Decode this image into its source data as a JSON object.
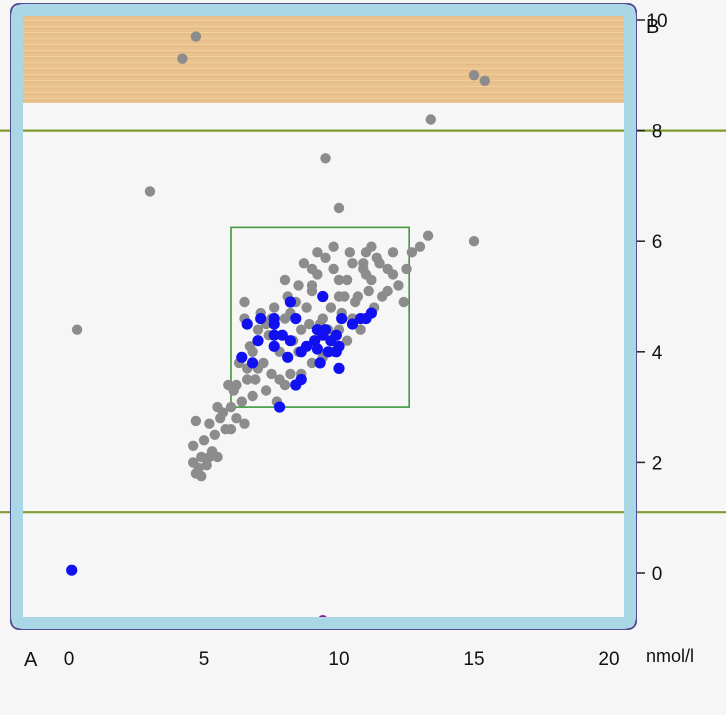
{
  "chart_data": {
    "type": "scatter",
    "corner_label_bottom_left": "A",
    "corner_label_top_right": "B",
    "x_unit_label": "nmol/l",
    "x_ticks": [
      "0",
      "5",
      "10",
      "15",
      "20"
    ],
    "y_ticks": [
      "0",
      "2",
      "4",
      "6",
      "8",
      "10"
    ],
    "xlim": [
      0,
      20
    ],
    "ylim": [
      -0.8,
      10
    ],
    "reference_lines_y": [
      1.1,
      8.0
    ],
    "upper_band_y": [
      8.5,
      10
    ],
    "reference_box": {
      "x": [
        6.0,
        12.6
      ],
      "y": [
        3.0,
        6.25
      ]
    },
    "grid": false,
    "colors": {
      "background": "#f6f6f6",
      "frame": "#a9d7e5",
      "frame_border": "#504c98",
      "band": "#e9c28e",
      "reference_line": "#7e9b2f",
      "reference_box": "#3e9a3e",
      "series_gray": "#8c8c8c",
      "series_blue": "#1010f0",
      "marker_purple": "#8a1f8a"
    },
    "series": [
      {
        "color": "#8c8c8c",
        "points": [
          [
            0.3,
            4.4
          ],
          [
            4.7,
            9.7
          ],
          [
            4.2,
            9.3
          ],
          [
            15.0,
            9.0
          ],
          [
            15.4,
            8.9
          ],
          [
            13.4,
            8.2
          ],
          [
            3.0,
            6.9
          ],
          [
            9.5,
            7.5
          ],
          [
            10.0,
            6.6
          ],
          [
            15.0,
            6.0
          ],
          [
            13.3,
            6.1
          ],
          [
            12.7,
            5.8
          ],
          [
            12.5,
            5.5
          ],
          [
            13.0,
            5.9
          ],
          [
            12.0,
            5.8
          ],
          [
            11.5,
            5.6
          ],
          [
            11.0,
            5.4
          ],
          [
            10.5,
            5.6
          ],
          [
            10.0,
            5.3
          ],
          [
            9.5,
            5.7
          ],
          [
            9.0,
            5.5
          ],
          [
            9.4,
            5.0
          ],
          [
            8.5,
            5.2
          ],
          [
            8.8,
            4.8
          ],
          [
            9.2,
            5.4
          ],
          [
            10.2,
            5.0
          ],
          [
            10.7,
            5.0
          ],
          [
            11.2,
            5.3
          ],
          [
            11.6,
            5.0
          ],
          [
            11.8,
            5.5
          ],
          [
            10.5,
            4.6
          ],
          [
            10.0,
            4.4
          ],
          [
            9.3,
            4.5
          ],
          [
            8.6,
            4.4
          ],
          [
            8.0,
            4.6
          ],
          [
            8.3,
            4.2
          ],
          [
            7.8,
            4.0
          ],
          [
            7.4,
            4.3
          ],
          [
            7.0,
            4.4
          ],
          [
            6.8,
            4.0
          ],
          [
            6.5,
            4.6
          ],
          [
            7.2,
            3.8
          ],
          [
            7.5,
            3.6
          ],
          [
            7.8,
            3.5
          ],
          [
            8.2,
            3.6
          ],
          [
            8.6,
            3.6
          ],
          [
            9.0,
            3.8
          ],
          [
            9.4,
            3.9
          ],
          [
            8.0,
            3.4
          ],
          [
            7.3,
            3.3
          ],
          [
            6.8,
            3.2
          ],
          [
            6.4,
            3.1
          ],
          [
            6.0,
            3.0
          ],
          [
            5.7,
            2.9
          ],
          [
            6.2,
            2.8
          ],
          [
            5.8,
            2.6
          ],
          [
            6.5,
            2.7
          ],
          [
            5.4,
            2.5
          ],
          [
            5.0,
            2.4
          ],
          [
            5.3,
            2.2
          ],
          [
            4.9,
            2.1
          ],
          [
            4.6,
            2.0
          ],
          [
            4.8,
            1.9
          ],
          [
            5.1,
            1.95
          ],
          [
            4.7,
            1.8
          ],
          [
            4.9,
            1.75
          ],
          [
            5.2,
            2.1
          ],
          [
            4.6,
            2.3
          ],
          [
            6.2,
            3.4
          ],
          [
            6.6,
            3.5
          ],
          [
            7.0,
            3.7
          ],
          [
            6.9,
            3.5
          ],
          [
            9.8,
            4.0
          ],
          [
            10.3,
            4.2
          ],
          [
            10.8,
            4.4
          ],
          [
            11.3,
            4.8
          ],
          [
            11.0,
            5.8
          ],
          [
            8.4,
            4.9
          ],
          [
            8.1,
            5.0
          ],
          [
            7.6,
            4.8
          ],
          [
            7.1,
            4.7
          ],
          [
            9.7,
            4.8
          ],
          [
            10.3,
            5.3
          ],
          [
            10.9,
            5.6
          ],
          [
            11.4,
            5.7
          ],
          [
            9.0,
            5.1
          ],
          [
            8.7,
            5.6
          ],
          [
            9.8,
            5.9
          ],
          [
            10.4,
            5.8
          ],
          [
            11.2,
            5.9
          ],
          [
            9.2,
            5.8
          ],
          [
            8.0,
            5.3
          ],
          [
            7.3,
            4.5
          ],
          [
            6.7,
            4.1
          ],
          [
            6.3,
            3.8
          ],
          [
            5.9,
            3.4
          ],
          [
            5.5,
            3.0
          ],
          [
            5.2,
            2.7
          ],
          [
            7.7,
            3.1
          ],
          [
            8.5,
            4.0
          ],
          [
            9.1,
            4.2
          ],
          [
            9.6,
            4.4
          ],
          [
            10.1,
            4.7
          ],
          [
            10.6,
            4.9
          ],
          [
            11.1,
            5.1
          ],
          [
            11.8,
            5.1
          ],
          [
            12.2,
            5.2
          ],
          [
            10.0,
            5.0
          ],
          [
            9.4,
            4.6
          ],
          [
            8.9,
            4.5
          ],
          [
            8.2,
            4.7
          ],
          [
            7.5,
            4.6
          ],
          [
            7.0,
            4.2
          ],
          [
            6.6,
            3.7
          ],
          [
            6.1,
            3.3
          ],
          [
            5.6,
            2.8
          ],
          [
            4.7,
            2.75
          ],
          [
            5.5,
            2.1
          ],
          [
            9.8,
            5.5
          ],
          [
            10.9,
            5.5
          ],
          [
            12.0,
            5.4
          ],
          [
            12.4,
            4.9
          ],
          [
            6.0,
            2.6
          ],
          [
            6.5,
            4.9
          ],
          [
            9.0,
            5.2
          ]
        ]
      },
      {
        "color": "#1010f0",
        "points": [
          [
            0.1,
            0.05
          ],
          [
            9.4,
            5.0
          ],
          [
            6.4,
            3.9
          ],
          [
            6.8,
            3.8
          ],
          [
            6.6,
            4.5
          ],
          [
            7.1,
            4.6
          ],
          [
            7.6,
            4.6
          ],
          [
            7.6,
            4.5
          ],
          [
            7.6,
            4.3
          ],
          [
            7.9,
            4.3
          ],
          [
            7.0,
            4.2
          ],
          [
            7.6,
            4.1
          ],
          [
            8.1,
            3.9
          ],
          [
            8.2,
            4.2
          ],
          [
            8.4,
            4.6
          ],
          [
            8.6,
            4.0
          ],
          [
            8.8,
            4.1
          ],
          [
            9.1,
            4.2
          ],
          [
            9.2,
            4.4
          ],
          [
            9.4,
            4.3
          ],
          [
            9.5,
            4.4
          ],
          [
            9.2,
            4.05
          ],
          [
            9.6,
            4.0
          ],
          [
            9.3,
            3.8
          ],
          [
            9.7,
            4.2
          ],
          [
            9.9,
            4.3
          ],
          [
            10.0,
            4.1
          ],
          [
            10.1,
            4.6
          ],
          [
            10.5,
            4.5
          ],
          [
            10.8,
            4.6
          ],
          [
            11.0,
            4.6
          ],
          [
            11.2,
            4.7
          ],
          [
            10.0,
            3.7
          ],
          [
            8.6,
            3.5
          ],
          [
            8.4,
            3.4
          ],
          [
            7.8,
            3.0
          ],
          [
            8.2,
            4.9
          ],
          [
            9.9,
            4.0
          ]
        ]
      },
      {
        "color": "#8a1f8a",
        "points": [
          [
            9.4,
            -0.85
          ]
        ]
      }
    ]
  }
}
